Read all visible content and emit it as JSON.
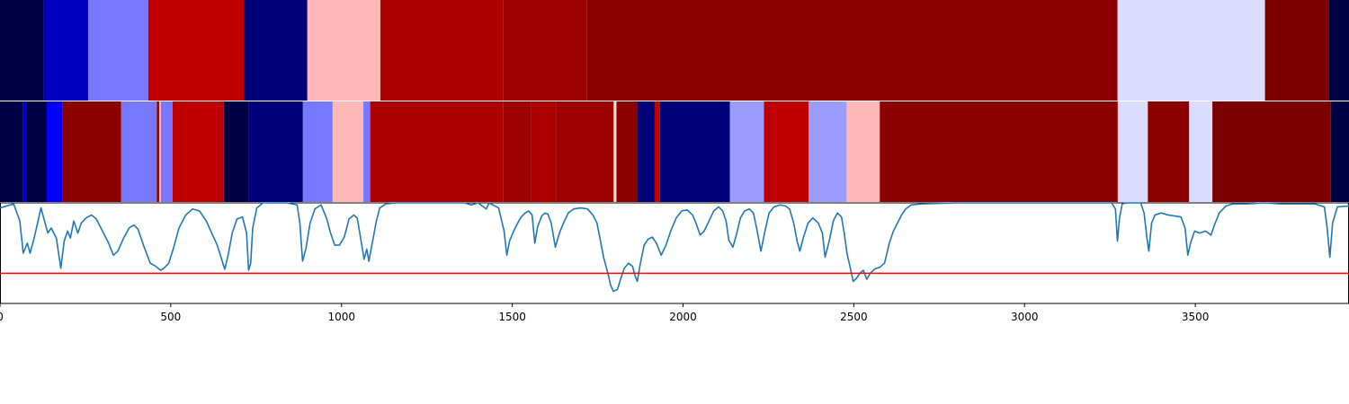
{
  "chart_data": {
    "type": "heatmap",
    "xlim": [
      0,
      3950
    ],
    "x_ticks": [
      0,
      500,
      1000,
      1500,
      2000,
      2500,
      3000,
      3500
    ],
    "x_tick_labels": [
      "0",
      "500",
      "1000",
      "1500",
      "2000",
      "2500",
      "3000",
      "3500"
    ],
    "grid": false,
    "legend": "none",
    "tracks": [
      {
        "type": "segments",
        "segments": [
          {
            "start": 0,
            "end": 128,
            "color": "#000045"
          },
          {
            "start": 128,
            "end": 258,
            "color": "#0000bf"
          },
          {
            "start": 258,
            "end": 434,
            "color": "#7878ff"
          },
          {
            "start": 434,
            "end": 714,
            "color": "#c00000"
          },
          {
            "start": 714,
            "end": 900,
            "color": "#000079"
          },
          {
            "start": 900,
            "end": 1114,
            "color": "#ffb8b8"
          },
          {
            "start": 1114,
            "end": 1474,
            "color": "#ac0000"
          },
          {
            "start": 1474,
            "end": 1719,
            "color": "#9c0000"
          },
          {
            "start": 1719,
            "end": 3272,
            "color": "#8c0000"
          },
          {
            "start": 3272,
            "end": 3704,
            "color": "#dcdcff"
          },
          {
            "start": 3704,
            "end": 3891,
            "color": "#7c0000"
          },
          {
            "start": 3891,
            "end": 3950,
            "color": "#000045"
          }
        ]
      },
      {
        "type": "segments",
        "segments": [
          {
            "start": 0,
            "end": 66,
            "color": "#000045"
          },
          {
            "start": 66,
            "end": 79,
            "color": "#0000c8"
          },
          {
            "start": 79,
            "end": 137,
            "color": "#000045"
          },
          {
            "start": 137,
            "end": 182,
            "color": "#0000ff"
          },
          {
            "start": 182,
            "end": 355,
            "color": "#8c0000"
          },
          {
            "start": 355,
            "end": 459,
            "color": "#7878ff"
          },
          {
            "start": 459,
            "end": 466,
            "color": "#8c0000"
          },
          {
            "start": 466,
            "end": 471,
            "color": "#ffb8b8"
          },
          {
            "start": 471,
            "end": 505,
            "color": "#7878ff"
          },
          {
            "start": 505,
            "end": 655,
            "color": "#c00000"
          },
          {
            "start": 655,
            "end": 727,
            "color": "#000045"
          },
          {
            "start": 727,
            "end": 887,
            "color": "#000079"
          },
          {
            "start": 887,
            "end": 974,
            "color": "#7878ff"
          },
          {
            "start": 974,
            "end": 1064,
            "color": "#ffb8b8"
          },
          {
            "start": 1064,
            "end": 1084,
            "color": "#7878ff"
          },
          {
            "start": 1084,
            "end": 1474,
            "color": "#ac0000"
          },
          {
            "start": 1474,
            "end": 1556,
            "color": "#9c0000"
          },
          {
            "start": 1556,
            "end": 1629,
            "color": "#ac0000"
          },
          {
            "start": 1629,
            "end": 1797,
            "color": "#9c0000"
          },
          {
            "start": 1797,
            "end": 1805,
            "color": "#ffdcdc"
          },
          {
            "start": 1805,
            "end": 1866,
            "color": "#8c0000"
          },
          {
            "start": 1866,
            "end": 1917,
            "color": "#000079"
          },
          {
            "start": 1917,
            "end": 1932,
            "color": "#c00000"
          },
          {
            "start": 1932,
            "end": 2137,
            "color": "#000079"
          },
          {
            "start": 2137,
            "end": 2237,
            "color": "#9c9cff"
          },
          {
            "start": 2237,
            "end": 2368,
            "color": "#c00000"
          },
          {
            "start": 2368,
            "end": 2479,
            "color": "#9c9cff"
          },
          {
            "start": 2479,
            "end": 2576,
            "color": "#ffb8b8"
          },
          {
            "start": 2576,
            "end": 3273,
            "color": "#8c0000"
          },
          {
            "start": 3273,
            "end": 3361,
            "color": "#dcdcff"
          },
          {
            "start": 3361,
            "end": 3482,
            "color": "#8c0000"
          },
          {
            "start": 3482,
            "end": 3550,
            "color": "#dcdcff"
          },
          {
            "start": 3550,
            "end": 3897,
            "color": "#7c0000"
          },
          {
            "start": 3897,
            "end": 3950,
            "color": "#000045"
          }
        ]
      },
      {
        "type": "line",
        "ylim": [
          0,
          1
        ],
        "line_color": "#1f77b4",
        "threshold": 0.3,
        "threshold_color": "#ff0000",
        "points": [
          [
            0,
            0.95
          ],
          [
            40,
            0.99
          ],
          [
            58,
            0.82
          ],
          [
            68,
            0.5
          ],
          [
            80,
            0.6
          ],
          [
            88,
            0.5
          ],
          [
            100,
            0.65
          ],
          [
            110,
            0.8
          ],
          [
            120,
            0.95
          ],
          [
            128,
            0.85
          ],
          [
            140,
            0.7
          ],
          [
            150,
            0.75
          ],
          [
            165,
            0.65
          ],
          [
            178,
            0.35
          ],
          [
            188,
            0.62
          ],
          [
            198,
            0.72
          ],
          [
            206,
            0.65
          ],
          [
            216,
            0.82
          ],
          [
            228,
            0.7
          ],
          [
            238,
            0.8
          ],
          [
            252,
            0.85
          ],
          [
            268,
            0.88
          ],
          [
            282,
            0.84
          ],
          [
            300,
            0.72
          ],
          [
            318,
            0.6
          ],
          [
            332,
            0.48
          ],
          [
            345,
            0.52
          ],
          [
            362,
            0.65
          ],
          [
            378,
            0.75
          ],
          [
            392,
            0.78
          ],
          [
            404,
            0.74
          ],
          [
            420,
            0.58
          ],
          [
            440,
            0.4
          ],
          [
            456,
            0.37
          ],
          [
            470,
            0.33
          ],
          [
            480,
            0.35
          ],
          [
            494,
            0.4
          ],
          [
            508,
            0.55
          ],
          [
            524,
            0.75
          ],
          [
            544,
            0.88
          ],
          [
            564,
            0.94
          ],
          [
            584,
            0.92
          ],
          [
            604,
            0.82
          ],
          [
            620,
            0.7
          ],
          [
            636,
            0.58
          ],
          [
            648,
            0.45
          ],
          [
            658,
            0.34
          ],
          [
            668,
            0.48
          ],
          [
            680,
            0.7
          ],
          [
            694,
            0.84
          ],
          [
            710,
            0.86
          ],
          [
            722,
            0.7
          ],
          [
            728,
            0.33
          ],
          [
            734,
            0.4
          ],
          [
            740,
            0.75
          ],
          [
            752,
            0.95
          ],
          [
            770,
            1.0
          ],
          [
            800,
            1.0
          ],
          [
            840,
            1.0
          ],
          [
            870,
            0.98
          ],
          [
            878,
            0.8
          ],
          [
            886,
            0.42
          ],
          [
            896,
            0.55
          ],
          [
            908,
            0.8
          ],
          [
            922,
            0.94
          ],
          [
            940,
            0.98
          ],
          [
            956,
            0.85
          ],
          [
            968,
            0.7
          ],
          [
            980,
            0.58
          ],
          [
            994,
            0.58
          ],
          [
            1008,
            0.66
          ],
          [
            1022,
            0.84
          ],
          [
            1036,
            0.88
          ],
          [
            1046,
            0.85
          ],
          [
            1056,
            0.65
          ],
          [
            1066,
            0.44
          ],
          [
            1074,
            0.54
          ],
          [
            1080,
            0.42
          ],
          [
            1090,
            0.6
          ],
          [
            1102,
            0.82
          ],
          [
            1112,
            0.95
          ],
          [
            1130,
            0.99
          ],
          [
            1160,
            1.0
          ],
          [
            1200,
            1.0
          ],
          [
            1300,
            1.0
          ],
          [
            1360,
            1.0
          ],
          [
            1380,
            0.98
          ],
          [
            1400,
            1.0
          ],
          [
            1424,
            0.94
          ],
          [
            1432,
            1.0
          ],
          [
            1460,
            0.95
          ],
          [
            1476,
            0.72
          ],
          [
            1484,
            0.48
          ],
          [
            1492,
            0.62
          ],
          [
            1504,
            0.72
          ],
          [
            1516,
            0.8
          ],
          [
            1526,
            0.86
          ],
          [
            1538,
            0.9
          ],
          [
            1548,
            0.92
          ],
          [
            1558,
            0.88
          ],
          [
            1566,
            0.6
          ],
          [
            1574,
            0.76
          ],
          [
            1586,
            0.87
          ],
          [
            1596,
            0.9
          ],
          [
            1604,
            0.89
          ],
          [
            1614,
            0.8
          ],
          [
            1626,
            0.56
          ],
          [
            1638,
            0.7
          ],
          [
            1650,
            0.8
          ],
          [
            1664,
            0.9
          ],
          [
            1680,
            0.94
          ],
          [
            1700,
            0.95
          ],
          [
            1720,
            0.94
          ],
          [
            1736,
            0.88
          ],
          [
            1748,
            0.8
          ],
          [
            1756,
            0.66
          ],
          [
            1768,
            0.45
          ],
          [
            1780,
            0.3
          ],
          [
            1788,
            0.18
          ],
          [
            1796,
            0.12
          ],
          [
            1808,
            0.14
          ],
          [
            1818,
            0.25
          ],
          [
            1828,
            0.35
          ],
          [
            1840,
            0.4
          ],
          [
            1852,
            0.37
          ],
          [
            1860,
            0.27
          ],
          [
            1866,
            0.22
          ],
          [
            1874,
            0.38
          ],
          [
            1886,
            0.58
          ],
          [
            1898,
            0.64
          ],
          [
            1910,
            0.66
          ],
          [
            1922,
            0.6
          ],
          [
            1936,
            0.48
          ],
          [
            1950,
            0.58
          ],
          [
            1964,
            0.72
          ],
          [
            1980,
            0.85
          ],
          [
            1996,
            0.92
          ],
          [
            2012,
            0.93
          ],
          [
            2028,
            0.88
          ],
          [
            2040,
            0.78
          ],
          [
            2050,
            0.68
          ],
          [
            2062,
            0.72
          ],
          [
            2076,
            0.82
          ],
          [
            2090,
            0.92
          ],
          [
            2104,
            0.96
          ],
          [
            2116,
            0.92
          ],
          [
            2126,
            0.82
          ],
          [
            2134,
            0.63
          ],
          [
            2146,
            0.56
          ],
          [
            2156,
            0.68
          ],
          [
            2168,
            0.85
          ],
          [
            2180,
            0.92
          ],
          [
            2194,
            0.94
          ],
          [
            2206,
            0.9
          ],
          [
            2216,
            0.74
          ],
          [
            2228,
            0.52
          ],
          [
            2240,
            0.72
          ],
          [
            2252,
            0.9
          ],
          [
            2266,
            0.96
          ],
          [
            2284,
            0.98
          ],
          [
            2300,
            0.97
          ],
          [
            2312,
            0.94
          ],
          [
            2324,
            0.8
          ],
          [
            2334,
            0.62
          ],
          [
            2342,
            0.52
          ],
          [
            2352,
            0.65
          ],
          [
            2366,
            0.8
          ],
          [
            2380,
            0.85
          ],
          [
            2396,
            0.8
          ],
          [
            2408,
            0.7
          ],
          [
            2416,
            0.46
          ],
          [
            2428,
            0.62
          ],
          [
            2440,
            0.82
          ],
          [
            2452,
            0.9
          ],
          [
            2464,
            0.86
          ],
          [
            2472,
            0.7
          ],
          [
            2480,
            0.5
          ],
          [
            2490,
            0.35
          ],
          [
            2498,
            0.22
          ],
          [
            2508,
            0.25
          ],
          [
            2518,
            0.3
          ],
          [
            2528,
            0.33
          ],
          [
            2538,
            0.24
          ],
          [
            2548,
            0.3
          ],
          [
            2560,
            0.34
          ],
          [
            2576,
            0.36
          ],
          [
            2590,
            0.4
          ],
          [
            2604,
            0.6
          ],
          [
            2616,
            0.72
          ],
          [
            2628,
            0.8
          ],
          [
            2640,
            0.88
          ],
          [
            2652,
            0.94
          ],
          [
            2668,
            0.98
          ],
          [
            2700,
            0.99
          ],
          [
            2800,
            1.0
          ],
          [
            3000,
            1.0
          ],
          [
            3100,
            1.0
          ],
          [
            3200,
            1.0
          ],
          [
            3255,
            1.0
          ],
          [
            3266,
            0.94
          ],
          [
            3272,
            0.62
          ],
          [
            3278,
            0.85
          ],
          [
            3286,
            0.99
          ],
          [
            3300,
            1.0
          ],
          [
            3340,
            1.0
          ],
          [
            3350,
            0.9
          ],
          [
            3358,
            0.66
          ],
          [
            3364,
            0.52
          ],
          [
            3372,
            0.8
          ],
          [
            3382,
            0.88
          ],
          [
            3400,
            0.9
          ],
          [
            3420,
            0.88
          ],
          [
            3440,
            0.87
          ],
          [
            3458,
            0.86
          ],
          [
            3470,
            0.75
          ],
          [
            3478,
            0.48
          ],
          [
            3486,
            0.6
          ],
          [
            3498,
            0.72
          ],
          [
            3512,
            0.7
          ],
          [
            3530,
            0.72
          ],
          [
            3546,
            0.68
          ],
          [
            3556,
            0.78
          ],
          [
            3570,
            0.9
          ],
          [
            3590,
            0.97
          ],
          [
            3610,
            0.99
          ],
          [
            3650,
            0.99
          ],
          [
            3700,
            1.0
          ],
          [
            3750,
            0.99
          ],
          [
            3800,
            0.99
          ],
          [
            3850,
            0.99
          ],
          [
            3878,
            0.96
          ],
          [
            3886,
            0.75
          ],
          [
            3894,
            0.46
          ],
          [
            3902,
            0.8
          ],
          [
            3916,
            0.96
          ],
          [
            3950,
            0.97
          ]
        ]
      }
    ]
  }
}
